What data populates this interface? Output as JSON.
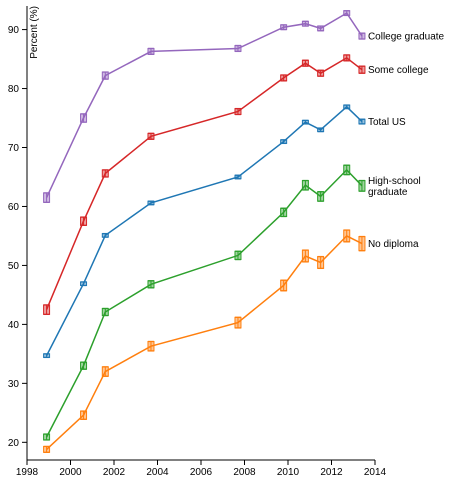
{
  "chart_data": {
    "type": "line",
    "title": "",
    "xlabel": "",
    "ylabel": "Percent (%)",
    "xlim": [
      1998,
      2014
    ],
    "ylim": [
      17,
      94
    ],
    "xticks": [
      1998,
      2000,
      2002,
      2004,
      2006,
      2008,
      2010,
      2012,
      2014
    ],
    "yticks": [
      20,
      30,
      40,
      50,
      60,
      70,
      80,
      90
    ],
    "grid": false,
    "legend": "inline labels at right end of each line",
    "x": [
      1998.9,
      2000.6,
      2001.6,
      2003.7,
      2007.7,
      2009.8,
      2010.8,
      2011.5,
      2012.7,
      2013.4
    ],
    "series": [
      {
        "name": "College graduate",
        "label_lines": [
          "College graduate"
        ],
        "color": "#9467bd",
        "values": [
          61.5,
          75.0,
          82.2,
          86.3,
          86.8,
          90.4,
          91.0,
          90.2,
          92.8,
          88.9
        ],
        "error": [
          0.8,
          0.7,
          0.6,
          0.5,
          0.5,
          0.4,
          0.4,
          0.4,
          0.4,
          0.5
        ]
      },
      {
        "name": "Some college",
        "label_lines": [
          "Some college"
        ],
        "color": "#d62728",
        "values": [
          42.5,
          57.5,
          65.6,
          71.9,
          76.1,
          81.8,
          84.3,
          82.6,
          85.2,
          83.2
        ],
        "error": [
          0.8,
          0.7,
          0.6,
          0.5,
          0.5,
          0.5,
          0.5,
          0.5,
          0.5,
          0.6
        ]
      },
      {
        "name": "Total US",
        "label_lines": [
          "Total US"
        ],
        "color": "#1f77b4",
        "values": [
          34.7,
          46.9,
          55.1,
          60.6,
          65.0,
          71.0,
          74.3,
          73.0,
          76.9,
          74.4
        ],
        "error": [
          0.3,
          0.3,
          0.3,
          0.3,
          0.3,
          0.3,
          0.3,
          0.3,
          0.3,
          0.4
        ]
      },
      {
        "name": "High-school graduate",
        "label_lines": [
          "High-school",
          "graduate"
        ],
        "color": "#2ca02c",
        "values": [
          20.9,
          33.0,
          42.1,
          46.8,
          51.7,
          59.0,
          63.6,
          61.7,
          66.2,
          63.5
        ],
        "error": [
          0.5,
          0.6,
          0.6,
          0.6,
          0.7,
          0.7,
          0.8,
          0.8,
          0.8,
          0.9
        ]
      },
      {
        "name": "No diploma",
        "label_lines": [
          "No diploma"
        ],
        "color": "#ff7f0e",
        "values": [
          18.8,
          24.6,
          32.0,
          36.3,
          40.3,
          46.6,
          51.6,
          50.5,
          55.0,
          53.7
        ],
        "error": [
          0.5,
          0.7,
          0.8,
          0.8,
          0.9,
          0.9,
          1.0,
          1.0,
          1.0,
          1.2
        ]
      }
    ]
  }
}
